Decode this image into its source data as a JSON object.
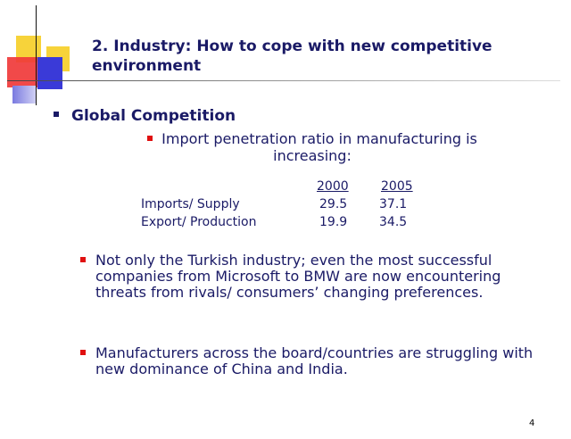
{
  "slide": {
    "title": "2. Industry: How to cope with new competitive environment",
    "heading": "Global Competition",
    "subbullet": "Import penetration ratio in manufacturing is increasing:",
    "table": {
      "headers": [
        "2000",
        "2005"
      ],
      "rows": [
        {
          "label": "Imports/ Supply",
          "values": [
            "29.5",
            "37.1"
          ]
        },
        {
          "label": "Export/ Production",
          "values": [
            "19.9",
            "34.5"
          ]
        }
      ]
    },
    "bullets": [
      "Not only the Turkish industry; even the most successful companies from Microsoft to BMW are now encountering threats from rivals/ consumers’ changing preferences.",
      "Manufacturers across the board/countries are struggling with new dominance of China and India."
    ],
    "page_number": "4",
    "colors": {
      "text": "#1a1a66",
      "bullet_red": "#e01010"
    }
  }
}
